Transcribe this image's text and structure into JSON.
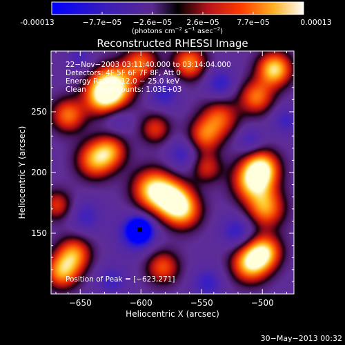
{
  "colorbar": {
    "tick_labels": [
      "-0.00013",
      "−7.7e−05",
      "−2.6e−05",
      "2.6e−05",
      "7.7e−05",
      "0.00013"
    ],
    "units_main": "(photons cm",
    "units_exp1": "−2",
    "units_mid": " s",
    "units_exp2": "−1",
    "units_mid2": " asec",
    "units_exp3": "−2",
    "units_end": ")"
  },
  "chart_data": {
    "type": "heatmap",
    "title": "Reconstructed RHESSI Image",
    "xlabel": "Heliocentric X (arcsec)",
    "ylabel": "Heliocentric Y (arcsec)",
    "xlim": [
      -674,
      -474
    ],
    "ylim": [
      100,
      300
    ],
    "xticks": [
      -650,
      -600,
      -550,
      -500
    ],
    "yticks": [
      150,
      200,
      250
    ],
    "xtick_labels": [
      "−650",
      "−600",
      "−550",
      "−500"
    ],
    "ytick_labels": [
      "150",
      "200",
      "250"
    ],
    "colormap": "rhessi-blue-black-red-yellow-white",
    "color_range": [
      -0.00013,
      0.00013
    ],
    "annotations": [
      "22−Nov−2003 03:11:40.000 to 03:14:04.000",
      "Detectors: 4F 5F 6F 7F 8F, Att 0",
      "Energy Range: 12.0 − 25.0 keV",
      "Clean     Total counts: 1.03E+03"
    ],
    "peak_label": "Position of Peak = [−623,271]",
    "peak": [
      -623,
      271
    ],
    "minimum": [
      -601,
      153
    ],
    "blobs": [
      {
        "x": -623,
        "y": 271,
        "v": 1.0,
        "s": 12
      },
      {
        "x": -632,
        "y": 262,
        "v": 0.55,
        "s": 11
      },
      {
        "x": -590,
        "y": 186,
        "v": 0.85,
        "s": 12
      },
      {
        "x": -574,
        "y": 178,
        "v": 0.7,
        "s": 11
      },
      {
        "x": -565,
        "y": 168,
        "v": 0.55,
        "s": 11
      },
      {
        "x": -507,
        "y": 193,
        "v": 0.9,
        "s": 12
      },
      {
        "x": -500,
        "y": 205,
        "v": 0.6,
        "s": 10
      },
      {
        "x": -497,
        "y": 170,
        "v": 0.6,
        "s": 11
      },
      {
        "x": -510,
        "y": 125,
        "v": 0.85,
        "s": 11
      },
      {
        "x": -498,
        "y": 135,
        "v": 0.7,
        "s": 10
      },
      {
        "x": -490,
        "y": 285,
        "v": 0.9,
        "s": 10
      },
      {
        "x": -505,
        "y": 262,
        "v": 0.55,
        "s": 10
      },
      {
        "x": -660,
        "y": 247,
        "v": 0.55,
        "s": 10
      },
      {
        "x": -665,
        "y": 118,
        "v": 0.65,
        "s": 10
      },
      {
        "x": -655,
        "y": 133,
        "v": 0.6,
        "s": 10
      },
      {
        "x": -638,
        "y": 210,
        "v": 0.6,
        "s": 11
      },
      {
        "x": -625,
        "y": 218,
        "v": 0.45,
        "s": 10
      },
      {
        "x": -560,
        "y": 290,
        "v": 0.6,
        "s": 10
      },
      {
        "x": -535,
        "y": 245,
        "v": 0.45,
        "s": 11
      },
      {
        "x": -548,
        "y": 230,
        "v": 0.45,
        "s": 10
      },
      {
        "x": -582,
        "y": 122,
        "v": 0.45,
        "s": 10
      },
      {
        "x": -600,
        "y": 290,
        "v": 0.5,
        "s": 10
      },
      {
        "x": -588,
        "y": 236,
        "v": 0.35,
        "s": 9
      },
      {
        "x": -669,
        "y": 173,
        "v": 0.35,
        "s": 9
      },
      {
        "x": -546,
        "y": 204,
        "v": 0.3,
        "s": 9
      },
      {
        "x": -601,
        "y": 153,
        "v": -1.0,
        "s": 6
      },
      {
        "x": -603,
        "y": 150,
        "v": -0.6,
        "s": 11
      },
      {
        "x": -535,
        "y": 273,
        "v": -0.45,
        "s": 9
      },
      {
        "x": -581,
        "y": 265,
        "v": -0.4,
        "s": 9
      },
      {
        "x": -565,
        "y": 215,
        "v": -0.4,
        "s": 10
      },
      {
        "x": -520,
        "y": 151,
        "v": -0.45,
        "s": 10
      },
      {
        "x": -545,
        "y": 109,
        "v": -0.4,
        "s": 9
      },
      {
        "x": -624,
        "y": 111,
        "v": -0.35,
        "s": 9
      },
      {
        "x": -646,
        "y": 164,
        "v": -0.35,
        "s": 10
      },
      {
        "x": -620,
        "y": 244,
        "v": -0.3,
        "s": 9
      },
      {
        "x": -481,
        "y": 243,
        "v": -0.35,
        "s": 8
      },
      {
        "x": -510,
        "y": 226,
        "v": -0.35,
        "s": 8
      },
      {
        "x": -650,
        "y": 295,
        "v": -0.3,
        "s": 8
      }
    ]
  },
  "footer": {
    "date": "30−May−2013 00:32"
  }
}
